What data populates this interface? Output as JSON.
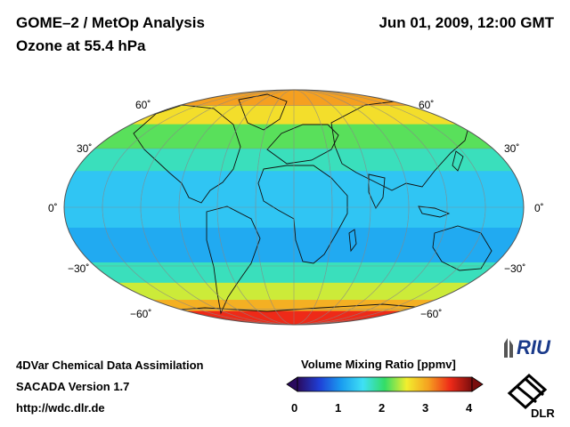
{
  "header": {
    "title": "GOME–2 / MetOp Analysis",
    "subtitle": "Ozone at 55.4 hPa",
    "datetime": "Jun 01, 2009, 12:00 GMT"
  },
  "map": {
    "projection": "Mollweide",
    "graticule": true,
    "lat_labels_left": [
      "60˚",
      "30˚",
      "0˚",
      "−30˚",
      "−60˚"
    ],
    "lat_labels_right": [
      "60˚",
      "30˚",
      "0˚",
      "−30˚",
      "−60˚"
    ],
    "ozone_bands": [
      {
        "lat_from": 90,
        "lat_to": 60,
        "vmr": 3.0
      },
      {
        "lat_from": 60,
        "lat_to": 45,
        "vmr": 2.6
      },
      {
        "lat_from": 45,
        "lat_to": 30,
        "vmr": 2.1
      },
      {
        "lat_from": 30,
        "lat_to": 18,
        "vmr": 1.7
      },
      {
        "lat_from": 18,
        "lat_to": -10,
        "vmr": 1.3
      },
      {
        "lat_from": -10,
        "lat_to": -28,
        "vmr": 1.1
      },
      {
        "lat_from": -28,
        "lat_to": -40,
        "vmr": 1.7
      },
      {
        "lat_from": -40,
        "lat_to": -52,
        "vmr": 2.4
      },
      {
        "lat_from": -52,
        "lat_to": -62,
        "vmr": 2.9
      },
      {
        "lat_from": -62,
        "lat_to": -90,
        "vmr": 3.5
      }
    ]
  },
  "colorbar": {
    "title": "Volume Mixing Ratio [ppmv]",
    "min": 0,
    "max": 4,
    "ticks": [
      "0",
      "1",
      "2",
      "3",
      "4"
    ],
    "colors": [
      "#2a0a5e",
      "#1f3fd6",
      "#1a9cf0",
      "#3fe0f5",
      "#33dd66",
      "#f2ee2e",
      "#f5a020",
      "#ee2a18",
      "#7a0d0d"
    ]
  },
  "footer": {
    "line1": "4DVar Chemical Data Assimilation",
    "line2": "SACADA Version 1.7",
    "line3": "http://wdc.dlr.de"
  },
  "logos": {
    "riu": "RIU",
    "dlr": "DLR"
  }
}
